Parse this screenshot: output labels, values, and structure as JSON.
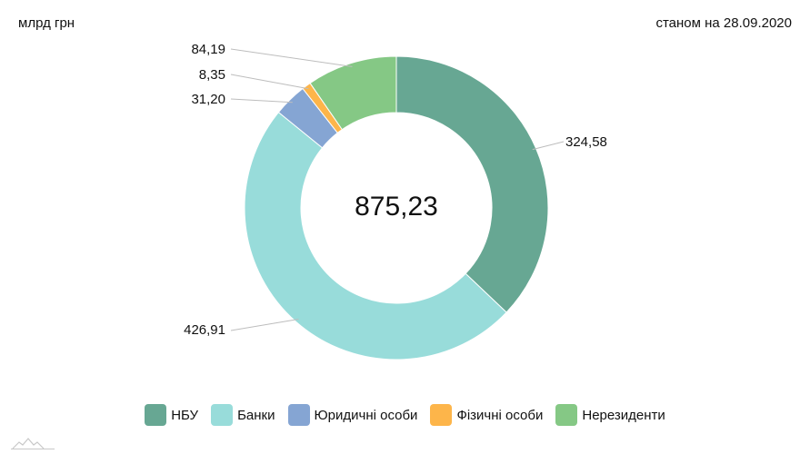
{
  "header": {
    "unit": "млрд грн",
    "date": "станом на 28.09.2020"
  },
  "chart_data": {
    "type": "donut",
    "total": 875.23,
    "total_label": "875,23",
    "start_angle_deg": 0,
    "direction": "clockwise",
    "legend_position": "bottom",
    "series": [
      {
        "name": "НБУ",
        "value": 324.58,
        "label": "324,58",
        "color": "#67a793"
      },
      {
        "name": "Банки",
        "value": 426.91,
        "label": "426,91",
        "color": "#98dcda"
      },
      {
        "name": "Юридичні особи",
        "value": 31.2,
        "label": "31,20",
        "color": "#85a5d3"
      },
      {
        "name": "Фізичні особи",
        "value": 8.35,
        "label": "8,35",
        "color": "#fdb54a"
      },
      {
        "name": "Нерезиденти",
        "value": 84.19,
        "label": "84,19",
        "color": "#85c885"
      }
    ]
  }
}
